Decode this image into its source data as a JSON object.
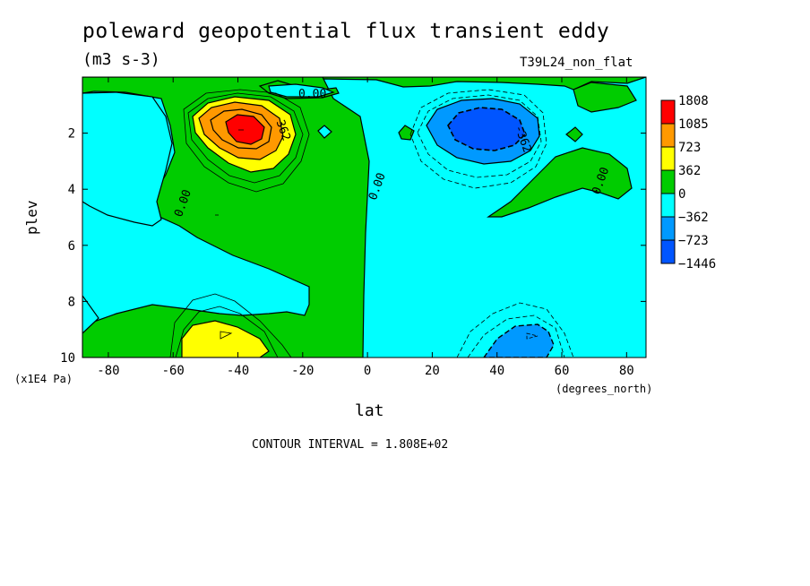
{
  "chart_data": {
    "type": "heatmap",
    "title": "poleward geopotential flux transient eddy",
    "units": "(m3 s-3)",
    "dataset_label": "T39L24_non_flat",
    "xlabel": "lat",
    "x_units": "(degrees_north)",
    "ylabel": "plev",
    "y_units": "(x1E4 Pa)",
    "footer": "CONTOUR INTERVAL = 1.808E+02",
    "xlim": [
      -88,
      86
    ],
    "ylim": [
      10,
      0
    ],
    "x_ticks": [
      -80,
      -60,
      -40,
      -20,
      0,
      20,
      40,
      60,
      80
    ],
    "x_tick_labels": [
      "-80",
      "-60",
      "-40",
      "-20",
      "0",
      "20",
      "40",
      "60",
      "80"
    ],
    "y_ticks": [
      2,
      4,
      6,
      8,
      10
    ],
    "y_tick_labels": [
      "2",
      "4",
      "6",
      "8",
      "10"
    ],
    "contour_labels": [
      {
        "text": "0.00",
        "x": -17,
        "y": 0.6
      },
      {
        "text": "362",
        "x": -26,
        "y": 1.9
      },
      {
        "text": "0.00",
        "x": -57,
        "y": 4.5
      },
      {
        "text": "0.00",
        "x": 3,
        "y": 3.9
      },
      {
        "text": "-362",
        "x": 48,
        "y": 2.2
      },
      {
        "text": "0.00",
        "x": 72,
        "y": 3.7
      }
    ],
    "colorbar": {
      "labels": [
        "1808",
        "1085",
        "723",
        "362",
        "0",
        "−362",
        "−723",
        "−1446"
      ],
      "colors": [
        "#ff0000",
        "#ff9900",
        "#ffff00",
        "#00cc00",
        "#00ffff",
        "#0099ff",
        "#0055ff"
      ]
    },
    "regions": [
      {
        "name": "positive-max",
        "lat": -37,
        "plev": 1.9,
        "level": 1808
      },
      {
        "name": "negative-max",
        "lat": 38,
        "plev": 2.0,
        "level": -1446
      }
    ]
  }
}
